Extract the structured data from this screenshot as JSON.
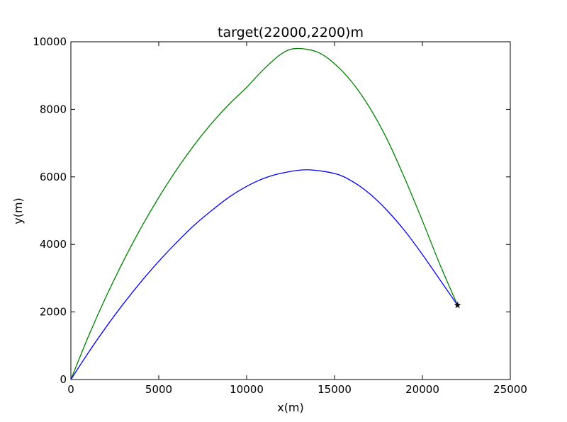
{
  "chart_data": {
    "type": "line",
    "title": "target(22000,2200)m",
    "xlabel": "x(m)",
    "ylabel": "y(m)",
    "xlim": [
      0,
      25000
    ],
    "ylim": [
      0,
      10000
    ],
    "x_ticks": [
      0,
      5000,
      10000,
      15000,
      20000,
      25000
    ],
    "y_ticks": [
      0,
      2000,
      4000,
      6000,
      8000,
      10000
    ],
    "x_tick_labels": [
      "0",
      "5000",
      "10000",
      "15000",
      "20000",
      "25000"
    ],
    "y_tick_labels": [
      "0",
      "2000",
      "4000",
      "6000",
      "8000",
      "10000"
    ],
    "grid": false,
    "legend": "none",
    "series": [
      {
        "color": "#008000",
        "points": [
          [
            0,
            0
          ],
          [
            1000,
            1280
          ],
          [
            2000,
            2450
          ],
          [
            3000,
            3520
          ],
          [
            4000,
            4500
          ],
          [
            5000,
            5390
          ],
          [
            6000,
            6200
          ],
          [
            7000,
            6930
          ],
          [
            8000,
            7580
          ],
          [
            9000,
            8150
          ],
          [
            10000,
            8650
          ],
          [
            11000,
            9200
          ],
          [
            12000,
            9650
          ],
          [
            12800,
            9800
          ],
          [
            14000,
            9700
          ],
          [
            15000,
            9350
          ],
          [
            16000,
            8800
          ],
          [
            17000,
            8050
          ],
          [
            18000,
            7100
          ],
          [
            19000,
            5950
          ],
          [
            20000,
            4700
          ],
          [
            21000,
            3400
          ],
          [
            22000,
            2200
          ]
        ]
      },
      {
        "color": "#0000ff",
        "points": [
          [
            0,
            0
          ],
          [
            1000,
            800
          ],
          [
            2000,
            1550
          ],
          [
            3000,
            2250
          ],
          [
            4000,
            2900
          ],
          [
            5000,
            3500
          ],
          [
            6000,
            4050
          ],
          [
            7000,
            4560
          ],
          [
            8000,
            5000
          ],
          [
            9000,
            5400
          ],
          [
            10000,
            5720
          ],
          [
            11000,
            5960
          ],
          [
            12000,
            6110
          ],
          [
            13400,
            6210
          ],
          [
            15000,
            6100
          ],
          [
            16000,
            5870
          ],
          [
            17000,
            5500
          ],
          [
            18000,
            5000
          ],
          [
            19000,
            4400
          ],
          [
            20000,
            3700
          ],
          [
            21000,
            2950
          ],
          [
            22000,
            2200
          ]
        ]
      }
    ],
    "markers": [
      {
        "x": 22000,
        "y": 2200,
        "symbol": "star",
        "color": "#000000"
      }
    ]
  }
}
